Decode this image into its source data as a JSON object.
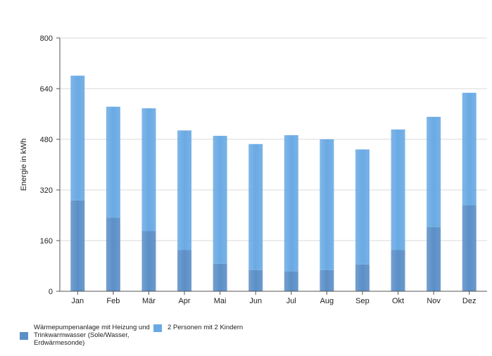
{
  "chart_data": {
    "type": "bar",
    "stacked": true,
    "title": "",
    "xlabel": "",
    "ylabel": "Energie in kWh",
    "ylim": [
      0,
      800
    ],
    "yticks": [
      0,
      160,
      320,
      480,
      640,
      800
    ],
    "grid": true,
    "legend_position": "bottom-left",
    "categories": [
      "Jan",
      "Feb",
      "Mär",
      "Apr",
      "Mai",
      "Jun",
      "Jul",
      "Aug",
      "Sep",
      "Okt",
      "Nov",
      "Dez"
    ],
    "series": [
      {
        "name": "Wärmepumpenanlage mit Heizung und Trinkwarmwasser (Sole/Wasser, Erdwärmesonde)",
        "color": "#5b8fc7",
        "values": [
          287,
          233,
          190,
          130,
          87,
          67,
          63,
          67,
          85,
          130,
          203,
          272
        ]
      },
      {
        "name": "2 Personen mit 2 Kindern",
        "color": "#6aaae4",
        "values": [
          394,
          350,
          388,
          378,
          404,
          398,
          430,
          413,
          363,
          381,
          348,
          355
        ]
      }
    ]
  }
}
